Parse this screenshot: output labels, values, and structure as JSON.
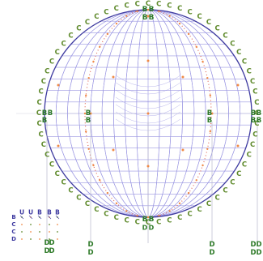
{
  "diagram": {
    "marker_labels": {
      "ring": "C",
      "bottom_row": "D",
      "side": "B",
      "top_cap": "B",
      "legend_top": [
        "U",
        "U",
        "B",
        "B",
        "B"
      ],
      "legend_side": [
        "B",
        "C",
        "C",
        "D"
      ]
    },
    "colors": {
      "background": "#ffffff",
      "grid": "#9a96e2",
      "outline": "#3e3aa0",
      "ring_marker": "#5f8a2c",
      "side_marker": "#2e7a28",
      "accent_dot": "#f08a46",
      "ellipse": "#e06a5a",
      "leader": "#b8b8cc"
    }
  }
}
